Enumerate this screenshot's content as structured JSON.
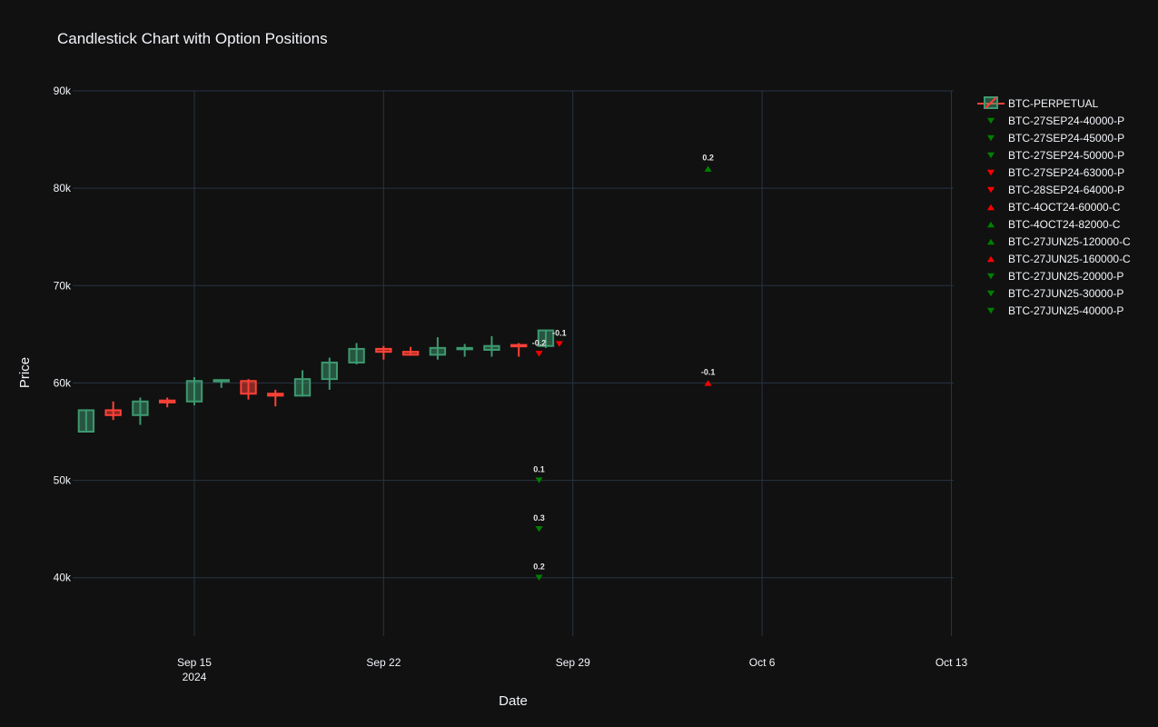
{
  "chart_data": {
    "type": "candlestick",
    "title": "Candlestick Chart with Option Positions",
    "xlabel": "Date",
    "ylabel": "Price",
    "x_range": [
      "2024-09-10T12:00",
      "2024-10-13T02:00"
    ],
    "ylim": [
      34000,
      90000
    ],
    "x_ticks": [
      {
        "date": "2024-09-15",
        "label": "Sep 15",
        "sublabel": "2024"
      },
      {
        "date": "2024-09-22",
        "label": "Sep 22",
        "sublabel": ""
      },
      {
        "date": "2024-09-29",
        "label": "Sep 29",
        "sublabel": ""
      },
      {
        "date": "2024-10-06",
        "label": "Oct 6",
        "sublabel": ""
      },
      {
        "date": "2024-10-13",
        "label": "Oct 13",
        "sublabel": ""
      }
    ],
    "y_ticks": [
      {
        "value": 40000,
        "label": "40k"
      },
      {
        "value": 50000,
        "label": "50k"
      },
      {
        "value": 60000,
        "label": "60k"
      },
      {
        "value": 70000,
        "label": "70k"
      },
      {
        "value": 80000,
        "label": "80k"
      },
      {
        "value": 90000,
        "label": "90k"
      }
    ],
    "grid": true,
    "legend_position": "right",
    "colors": {
      "increasing": "#3d9970",
      "decreasing": "#ff4136",
      "long": "#008000",
      "short": "#ff0000"
    },
    "candles": [
      {
        "date": "2024-09-11",
        "open": 55000,
        "high": 57300,
        "low": 54900,
        "close": 57200
      },
      {
        "date": "2024-09-12",
        "open": 57200,
        "high": 58100,
        "low": 56200,
        "close": 56700
      },
      {
        "date": "2024-09-13",
        "open": 56700,
        "high": 58500,
        "low": 55700,
        "close": 58100
      },
      {
        "date": "2024-09-14",
        "open": 58200,
        "high": 58500,
        "low": 57500,
        "close": 58000
      },
      {
        "date": "2024-09-15",
        "open": 58100,
        "high": 60600,
        "low": 57700,
        "close": 60200
      },
      {
        "date": "2024-09-16",
        "open": 60200,
        "high": 60300,
        "low": 59500,
        "close": 60300
      },
      {
        "date": "2024-09-17",
        "open": 60200,
        "high": 60400,
        "low": 58300,
        "close": 58900
      },
      {
        "date": "2024-09-18",
        "open": 58900,
        "high": 59300,
        "low": 57600,
        "close": 58700
      },
      {
        "date": "2024-09-19",
        "open": 58700,
        "high": 61300,
        "low": 58600,
        "close": 60400
      },
      {
        "date": "2024-09-20",
        "open": 60400,
        "high": 62600,
        "low": 59300,
        "close": 62100
      },
      {
        "date": "2024-09-21",
        "open": 62100,
        "high": 64100,
        "low": 61900,
        "close": 63500
      },
      {
        "date": "2024-09-22",
        "open": 63500,
        "high": 63800,
        "low": 62400,
        "close": 63200
      },
      {
        "date": "2024-09-23",
        "open": 63200,
        "high": 63700,
        "low": 62800,
        "close": 62900
      },
      {
        "date": "2024-09-24",
        "open": 62900,
        "high": 64700,
        "low": 62400,
        "close": 63600
      },
      {
        "date": "2024-09-25",
        "open": 63500,
        "high": 64000,
        "low": 62700,
        "close": 63600
      },
      {
        "date": "2024-09-26",
        "open": 63400,
        "high": 64800,
        "low": 62700,
        "close": 63800
      },
      {
        "date": "2024-09-27",
        "open": 63900,
        "high": 64100,
        "low": 62700,
        "close": 63800
      },
      {
        "date": "2024-09-28",
        "open": 63800,
        "high": 65500,
        "low": 63600,
        "close": 65400
      }
    ],
    "positions": [
      {
        "name": "BTC-27SEP24-40000-P",
        "date": "2024-09-27T18:00",
        "strike": 40000,
        "size": "0.2",
        "marker": "triangle-down",
        "color": "#008000"
      },
      {
        "name": "BTC-27SEP24-45000-P",
        "date": "2024-09-27T18:00",
        "strike": 45000,
        "size": "0.3",
        "marker": "triangle-down",
        "color": "#008000"
      },
      {
        "name": "BTC-27SEP24-50000-P",
        "date": "2024-09-27T18:00",
        "strike": 50000,
        "size": "0.1",
        "marker": "triangle-down",
        "color": "#008000"
      },
      {
        "name": "BTC-27SEP24-63000-P",
        "date": "2024-09-27T18:00",
        "strike": 63000,
        "size": "-0.2",
        "marker": "triangle-down",
        "color": "#ff0000"
      },
      {
        "name": "BTC-28SEP24-64000-P",
        "date": "2024-09-28T12:00",
        "strike": 64000,
        "size": "-0.1",
        "marker": "triangle-down",
        "color": "#ff0000"
      },
      {
        "name": "BTC-4OCT24-60000-C",
        "date": "2024-10-04T00:00",
        "strike": 60000,
        "size": "-0.1",
        "marker": "triangle-up",
        "color": "#ff0000"
      },
      {
        "name": "BTC-4OCT24-82000-C",
        "date": "2024-10-04T00:00",
        "strike": 82000,
        "size": "0.2",
        "marker": "triangle-up",
        "color": "#008000"
      },
      {
        "name": "BTC-27JUN25-120000-C",
        "date": null,
        "strike": 120000,
        "size": "",
        "marker": "triangle-up",
        "color": "#008000"
      },
      {
        "name": "BTC-27JUN25-160000-C",
        "date": null,
        "strike": 160000,
        "size": "",
        "marker": "triangle-up",
        "color": "#ff0000"
      },
      {
        "name": "BTC-27JUN25-20000-P",
        "date": null,
        "strike": 20000,
        "size": "",
        "marker": "triangle-down",
        "color": "#008000"
      },
      {
        "name": "BTC-27JUN25-30000-P",
        "date": null,
        "strike": 30000,
        "size": "",
        "marker": "triangle-down",
        "color": "#008000"
      },
      {
        "name": "BTC-27JUN25-40000-P",
        "date": null,
        "strike": 40000,
        "size": "",
        "marker": "triangle-down",
        "color": "#008000"
      }
    ],
    "legend": [
      {
        "name": "BTC-PERPETUAL",
        "kind": "candle"
      },
      {
        "name": "BTC-27SEP24-40000-P",
        "kind": "triangle-down",
        "color": "#008000"
      },
      {
        "name": "BTC-27SEP24-45000-P",
        "kind": "triangle-down",
        "color": "#008000"
      },
      {
        "name": "BTC-27SEP24-50000-P",
        "kind": "triangle-down",
        "color": "#008000"
      },
      {
        "name": "BTC-27SEP24-63000-P",
        "kind": "triangle-down",
        "color": "#ff0000"
      },
      {
        "name": "BTC-28SEP24-64000-P",
        "kind": "triangle-down",
        "color": "#ff0000"
      },
      {
        "name": "BTC-4OCT24-60000-C",
        "kind": "triangle-up",
        "color": "#ff0000"
      },
      {
        "name": "BTC-4OCT24-82000-C",
        "kind": "triangle-up",
        "color": "#008000"
      },
      {
        "name": "BTC-27JUN25-120000-C",
        "kind": "triangle-up",
        "color": "#008000"
      },
      {
        "name": "BTC-27JUN25-160000-C",
        "kind": "triangle-up",
        "color": "#ff0000"
      },
      {
        "name": "BTC-27JUN25-20000-P",
        "kind": "triangle-down",
        "color": "#008000"
      },
      {
        "name": "BTC-27JUN25-30000-P",
        "kind": "triangle-down",
        "color": "#008000"
      },
      {
        "name": "BTC-27JUN25-40000-P",
        "kind": "triangle-down",
        "color": "#008000"
      }
    ]
  }
}
